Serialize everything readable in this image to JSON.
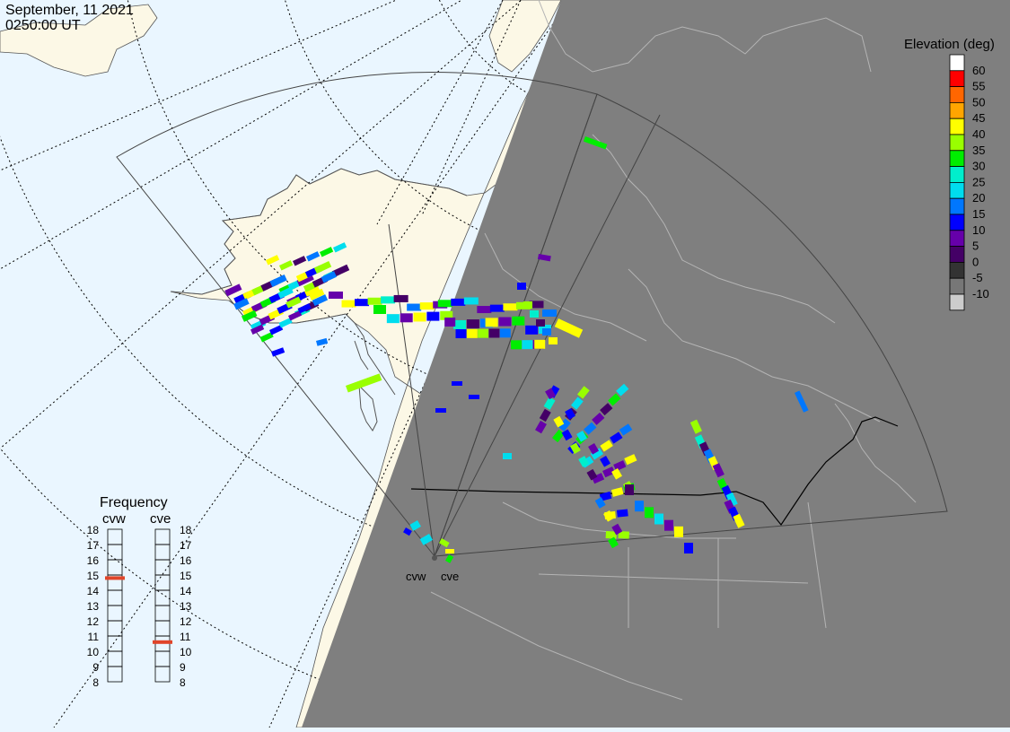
{
  "header": {
    "date": "September, 11 2021",
    "time": "0250:00 UT"
  },
  "colors": {
    "ocean": "#eaf6ff",
    "land": "#fcf8e6",
    "night": "#7f7f7f",
    "grid_line": "#000000",
    "coast_day": "#555555",
    "coast_night": "#b4b4b4",
    "fov": "#444444",
    "freq_marker": "#e0452a"
  },
  "legend": {
    "title": "Elevation (deg)",
    "entries": [
      {
        "label": "60",
        "color": "#ffffff"
      },
      {
        "label": "55",
        "color": "#ff0000"
      },
      {
        "label": "50",
        "color": "#ff6600"
      },
      {
        "label": "45",
        "color": "#ffa500"
      },
      {
        "label": "40",
        "color": "#ffff00"
      },
      {
        "label": "35",
        "color": "#99ff00"
      },
      {
        "label": "30",
        "color": "#00ee00"
      },
      {
        "label": "25",
        "color": "#00eecc"
      },
      {
        "label": "20",
        "color": "#00ddee"
      },
      {
        "label": "15",
        "color": "#0077ff"
      },
      {
        "label": "10",
        "color": "#0000ff"
      },
      {
        "label": "5",
        "color": "#6600aa"
      },
      {
        "label": "0",
        "color": "#440066"
      },
      {
        "label": "-5",
        "color": "#333333"
      },
      {
        "label": "-10",
        "color": "#777777"
      },
      {
        "label": "",
        "color": "#cccccc"
      }
    ]
  },
  "frequency": {
    "title": "Frequency",
    "radars": [
      {
        "name": "cvw",
        "value_mhz": 14.8
      },
      {
        "name": "cve",
        "value_mhz": 10.6
      }
    ],
    "ticks": [
      "18",
      "17",
      "16",
      "15",
      "14",
      "13",
      "12",
      "11",
      "10",
      "9",
      "8"
    ]
  },
  "stations": [
    {
      "name": "cvw"
    },
    {
      "name": "cve"
    }
  ]
}
